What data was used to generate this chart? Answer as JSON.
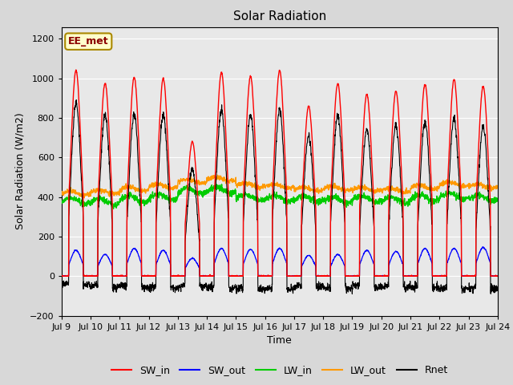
{
  "title": "Solar Radiation",
  "ylabel": "Solar Radiation (W/m2)",
  "xlabel": "Time",
  "annotation": "EE_met",
  "xstart_day": 9,
  "xend_day": 24,
  "ylim": [
    -200,
    1260
  ],
  "yticks": [
    -200,
    0,
    200,
    400,
    600,
    800,
    1000,
    1200
  ],
  "n_days": 15,
  "sw_in_peak": [
    1040,
    975,
    1005,
    1000,
    680,
    1030,
    1010,
    1040,
    860,
    975,
    920,
    935,
    970,
    995,
    960
  ],
  "sw_out_peak": [
    130,
    110,
    140,
    130,
    90,
    140,
    135,
    140,
    105,
    110,
    130,
    125,
    140,
    140,
    145
  ],
  "lw_in_mean": [
    380,
    375,
    390,
    400,
    430,
    435,
    400,
    395,
    390,
    385,
    390,
    385,
    395,
    405,
    395
  ],
  "lw_out_mean": [
    420,
    425,
    440,
    455,
    480,
    490,
    460,
    455,
    440,
    445,
    440,
    435,
    450,
    465,
    455
  ],
  "colors": {
    "SW_in": "#ff0000",
    "SW_out": "#0000ff",
    "LW_in": "#00cc00",
    "LW_out": "#ff9900",
    "Rnet": "#000000"
  },
  "fig_bg_color": "#d8d8d8",
  "plot_bg_color": "#e8e8e8",
  "grid_color": "#ffffff",
  "annotation_bg": "#ffffcc",
  "annotation_border": "#aa8800",
  "annotation_text_color": "#8b0000"
}
